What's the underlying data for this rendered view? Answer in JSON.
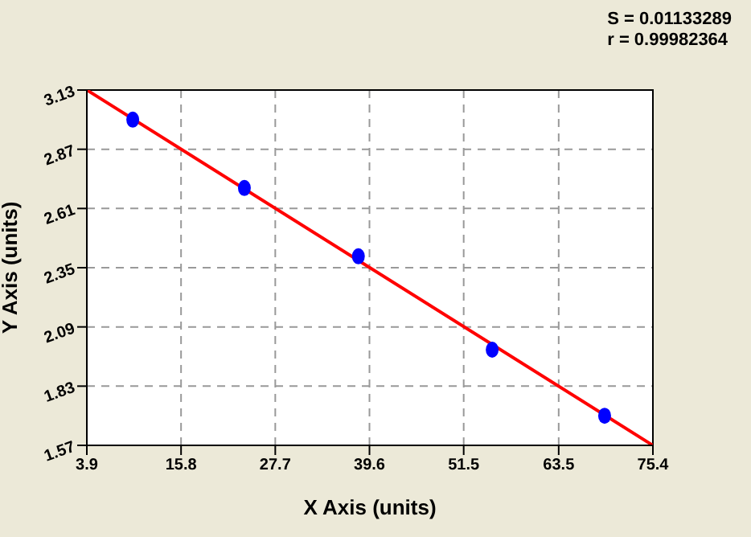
{
  "chart_data": {
    "type": "scatter",
    "xlabel": "X Axis (units)",
    "ylabel": "Y Axis (units)",
    "annotations": [
      "S = 0.01133289",
      "r = 0.99982364"
    ],
    "series": [
      {
        "color": "#0000ff",
        "x": [
          9.7,
          23.8,
          38.2,
          55.1,
          69.3
        ],
        "values": [
          3.0,
          2.7,
          2.4,
          1.99,
          1.7
        ],
        "marker": "circle"
      },
      {
        "type": "line",
        "color": "#ff0000",
        "x": [
          3.9,
          75.4
        ],
        "values": [
          3.13,
          1.57
        ],
        "marker": "none",
        "line_style": "solid"
      }
    ],
    "xlim": [
      3.9,
      75.4
    ],
    "xticks": [
      3.9,
      15.8,
      27.7,
      39.6,
      51.5,
      63.5,
      75.4
    ],
    "ylim": [
      1.57,
      3.13
    ],
    "yticks": [
      1.57,
      1.83,
      2.09,
      2.35,
      2.61,
      2.87,
      3.13
    ],
    "grid": true
  }
}
